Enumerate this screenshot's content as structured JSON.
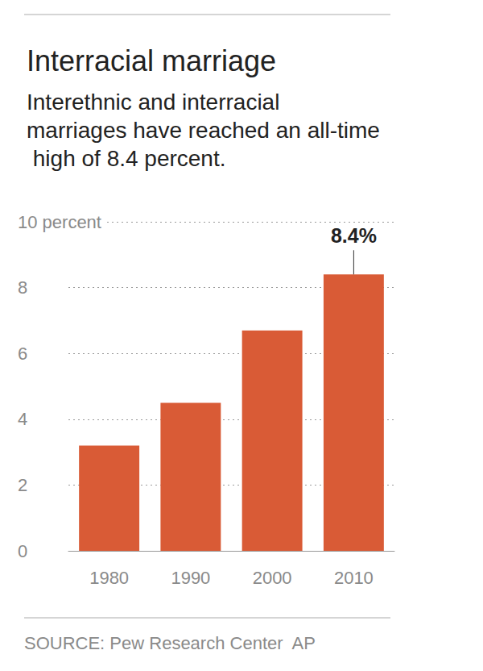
{
  "chart_data": {
    "type": "bar",
    "title": "Interracial marriage",
    "subtitle": "Interethnic and interracial marriages have reached an all-time high of 8.4 percent.",
    "categories": [
      "1980",
      "1990",
      "2000",
      "2010"
    ],
    "values": [
      3.2,
      4.5,
      6.7,
      8.4
    ],
    "color": "#d95b36",
    "ylim": [
      0,
      10
    ],
    "yticks": [
      0,
      2,
      4,
      6,
      8,
      {
        "value": 10,
        "label": "10 percent"
      }
    ],
    "grid": true,
    "annotations": [
      {
        "text": "8.4%",
        "x": "2010",
        "y": 8.4
      }
    ],
    "source": "SOURCE: Pew Research Center  AP"
  }
}
